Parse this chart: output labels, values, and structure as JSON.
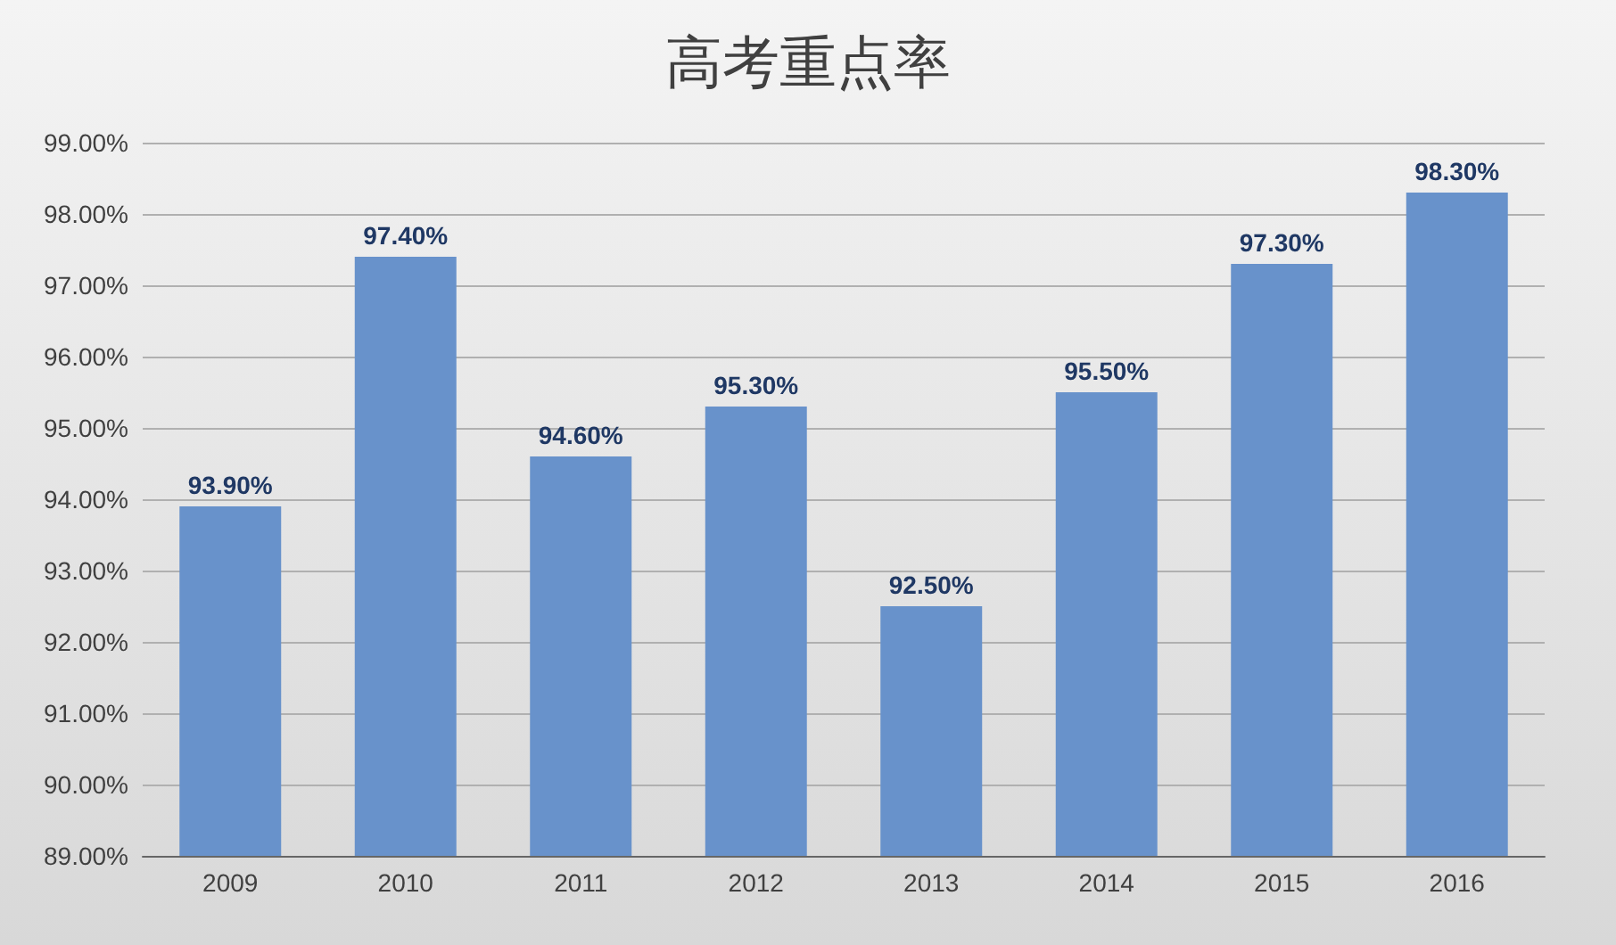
{
  "chart_data": {
    "type": "bar",
    "title": "高考重点率",
    "categories": [
      "2009",
      "2010",
      "2011",
      "2012",
      "2013",
      "2014",
      "2015",
      "2016"
    ],
    "values": [
      93.9,
      97.4,
      94.6,
      95.3,
      92.5,
      95.5,
      97.3,
      98.3
    ],
    "value_labels": [
      "93.90%",
      "97.40%",
      "94.60%",
      "95.30%",
      "92.50%",
      "95.50%",
      "97.30%",
      "98.30%"
    ],
    "color": "#6892cb",
    "ylim": [
      89,
      99
    ],
    "yticks": [
      {
        "value": 89,
        "label": "89.00%"
      },
      {
        "value": 90,
        "label": "90.00%"
      },
      {
        "value": 91,
        "label": "91.00%"
      },
      {
        "value": 92,
        "label": "92.00%"
      },
      {
        "value": 93,
        "label": "93.00%"
      },
      {
        "value": 94,
        "label": "94.00%"
      },
      {
        "value": 95,
        "label": "95.00%"
      },
      {
        "value": 96,
        "label": "96.00%"
      },
      {
        "value": 97,
        "label": "97.00%"
      },
      {
        "value": 98,
        "label": "98.00%"
      },
      {
        "value": 99,
        "label": "99.00%"
      }
    ],
    "grid": "y"
  }
}
